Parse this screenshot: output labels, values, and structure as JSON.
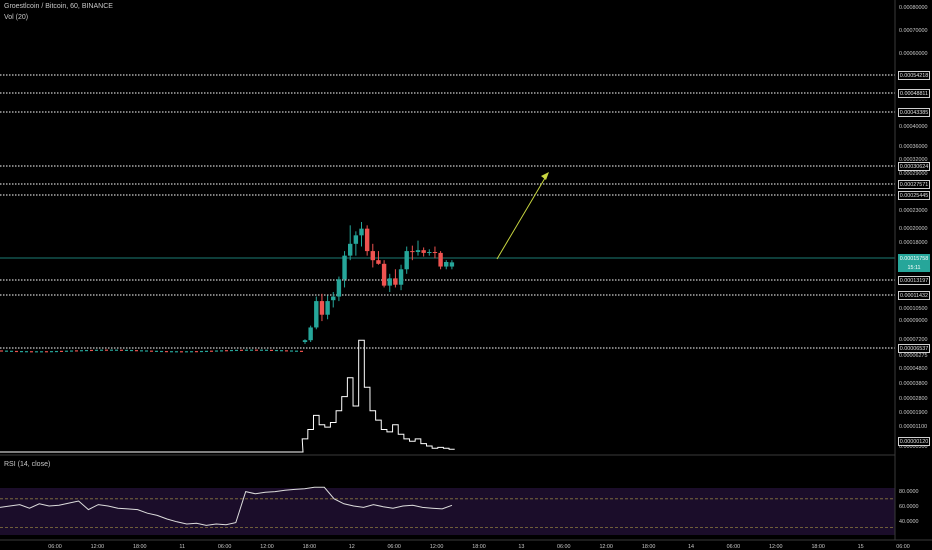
{
  "header": {
    "title": "Groestlcoin / Bitcoin, 60, BINANCE",
    "vol_label": "Vol (20)",
    "rsi_label": "RSI (14, close)"
  },
  "colors": {
    "background": "#000000",
    "up": "#26a69a",
    "down": "#ef5350",
    "level_line": "#ffffff",
    "arrow": "#c8d640",
    "rsi_band": "#1b0d2a",
    "rsi_line": "#dddddd",
    "current_price_line": "#26a69a"
  },
  "price_axis": {
    "ticks": [
      "0.00080000",
      "0.00070000",
      "0.00060000",
      "0.00040000",
      "0.00036000",
      "0.00032000",
      "0.00029000",
      "0.00023000",
      "0.00020000",
      "0.00018000",
      "0.00013200",
      "0.00010500",
      "0.00009000",
      "0.00007200",
      "0.00006275",
      "0.00004800",
      "0.00003800",
      "0.00002800",
      "0.00001900",
      "0.00001100",
      "0.00000300"
    ],
    "level_tags": [
      "0.00054218",
      "0.00048811",
      "0.00043385",
      "0.00030624",
      "0.00027571",
      "0.00025445",
      "0.00013197",
      "0.00011432",
      "0.00006537"
    ],
    "current_price": "0.00015758",
    "current_countdown": "15:11",
    "volume_value": "0.00000120"
  },
  "rsi_axis": {
    "ticks": [
      "80.0000",
      "60.0000",
      "40.0000"
    ]
  },
  "time_axis": {
    "labels": [
      "06:00",
      "12:00",
      "18:00",
      "11",
      "06:00",
      "12:00",
      "18:00",
      "12",
      "06:00",
      "12:00",
      "18:00",
      "13",
      "06:00",
      "12:00",
      "18:00",
      "14",
      "06:00",
      "12:00",
      "18:00",
      "15",
      "06:00"
    ]
  },
  "chart_data": [
    {
      "type": "candlestick",
      "title": "Groestlcoin / Bitcoin, 60, BINANCE",
      "xlabel": "",
      "ylabel": "",
      "series": [
        {
          "name": "price",
          "values": [
            {
              "o": 7e-05,
              "h": 7.3e-05,
              "l": 6.8e-05,
              "c": 7.2e-05
            },
            {
              "o": 7.2e-05,
              "h": 8.8e-05,
              "l": 7e-05,
              "c": 8.6e-05
            },
            {
              "o": 8.6e-05,
              "h": 0.00012,
              "l": 8.4e-05,
              "c": 0.000115
            },
            {
              "o": 0.000115,
              "h": 0.000123,
              "l": 9.3e-05,
              "c": 0.0001
            },
            {
              "o": 0.0001,
              "h": 0.000121,
              "l": 9.5e-05,
              "c": 0.000115
            },
            {
              "o": 0.000116,
              "h": 0.000125,
              "l": 0.000108,
              "c": 0.00012
            },
            {
              "o": 0.00012,
              "h": 0.000142,
              "l": 0.000115,
              "c": 0.000139
            },
            {
              "o": 0.000139,
              "h": 0.00017,
              "l": 0.00013,
              "c": 0.000165
            },
            {
              "o": 0.000165,
              "h": 0.000205,
              "l": 0.00016,
              "c": 0.000178
            },
            {
              "o": 0.000178,
              "h": 0.000196,
              "l": 0.000165,
              "c": 0.00019
            },
            {
              "o": 0.00019,
              "h": 0.00021,
              "l": 0.000175,
              "c": 0.0002
            },
            {
              "o": 0.0002,
              "h": 0.000205,
              "l": 0.000165,
              "c": 0.00017
            },
            {
              "o": 0.00017,
              "h": 0.000178,
              "l": 0.000152,
              "c": 0.00016
            },
            {
              "o": 0.00016,
              "h": 0.00017,
              "l": 0.000155,
              "c": 0.000156
            },
            {
              "o": 0.000156,
              "h": 0.00016,
              "l": 0.00013,
              "c": 0.000132
            },
            {
              "o": 0.000132,
              "h": 0.000145,
              "l": 0.000125,
              "c": 0.00014
            },
            {
              "o": 0.00014,
              "h": 0.00015,
              "l": 0.00013,
              "c": 0.000133
            },
            {
              "o": 0.000133,
              "h": 0.000155,
              "l": 0.000127,
              "c": 0.00015
            },
            {
              "o": 0.00015,
              "h": 0.000175,
              "l": 0.000145,
              "c": 0.00017
            },
            {
              "o": 0.00017,
              "h": 0.000176,
              "l": 0.00016,
              "c": 0.000169
            },
            {
              "o": 0.000169,
              "h": 0.000182,
              "l": 0.000165,
              "c": 0.000171
            },
            {
              "o": 0.000171,
              "h": 0.000174,
              "l": 0.000164,
              "c": 0.000168
            },
            {
              "o": 0.000168,
              "h": 0.000172,
              "l": 0.000165,
              "c": 0.000169
            },
            {
              "o": 0.000169,
              "h": 0.000175,
              "l": 0.000162,
              "c": 0.000168
            },
            {
              "o": 0.000168,
              "h": 0.00017,
              "l": 0.00015,
              "c": 0.000153
            },
            {
              "o": 0.000153,
              "h": 0.00016,
              "l": 0.00015,
              "c": 0.000158
            },
            {
              "o": 0.000153,
              "h": 0.00016,
              "l": 0.00015,
              "c": 0.0001576
            }
          ]
        },
        {
          "name": "Vol (20)",
          "values": [
            0.3,
            0.5,
            0.8,
            0.6,
            0.55,
            0.65,
            0.9,
            1.2,
            1.6,
            1.0,
            2.4,
            1.4,
            0.9,
            0.7,
            0.5,
            0.45,
            0.6,
            0.4,
            0.3,
            0.25,
            0.3,
            0.2,
            0.15,
            0.1,
            0.12,
            0.1,
            0.08
          ]
        },
        {
          "name": "RSI (14, close)",
          "values": [
            58,
            60,
            62,
            57,
            63,
            60,
            61,
            64,
            67,
            55,
            62,
            60,
            57,
            56,
            55,
            50,
            47,
            42,
            38,
            35,
            36,
            33,
            35,
            34,
            37,
            80,
            77,
            79,
            80,
            82,
            83,
            84,
            86,
            86,
            70,
            63,
            60,
            58,
            62,
            59,
            57,
            60,
            61,
            58,
            57,
            56,
            61
          ]
        }
      ],
      "rsi_levels": [
        70,
        30
      ],
      "grid": false,
      "legend": "none"
    }
  ]
}
